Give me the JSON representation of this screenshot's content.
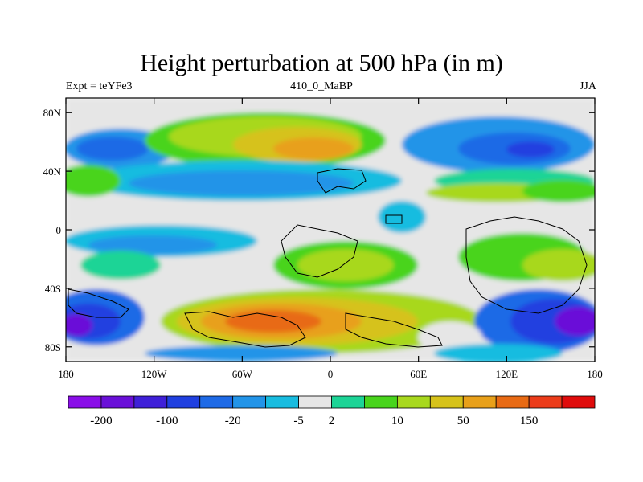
{
  "chart_data": {
    "type": "heatmap",
    "title": "Height perturbation at 500 hPa (in m)",
    "left_label": "Expt = teYFe3",
    "center_label": "410_0_MaBP",
    "right_label": "JJA",
    "x_ticks": [
      "180",
      "120W",
      "60W",
      "0",
      "60E",
      "120E",
      "180"
    ],
    "y_ticks": [
      "80N",
      "40N",
      "0",
      "40S",
      "80S"
    ],
    "xlim": [
      -180,
      180
    ],
    "ylim": [
      -90,
      90
    ],
    "colorbar_labels": [
      "-200",
      "-100",
      "-20",
      "-5",
      "2",
      "10",
      "50",
      "150"
    ],
    "colorbar_colors": [
      "#8a0ee8",
      "#6a10d8",
      "#3f20d8",
      "#2040e0",
      "#1e6ae6",
      "#2294e8",
      "#18bce0",
      "#e6e6e6",
      "#1cd496",
      "#48d41c",
      "#a8d81e",
      "#d6c21a",
      "#e8a01a",
      "#e86a14",
      "#ec3c1a",
      "#e00c0c"
    ],
    "colorbar_label_positions": [
      0.0625,
      0.1875,
      0.3125,
      0.4375,
      0.5,
      0.625,
      0.75,
      0.875
    ]
  }
}
